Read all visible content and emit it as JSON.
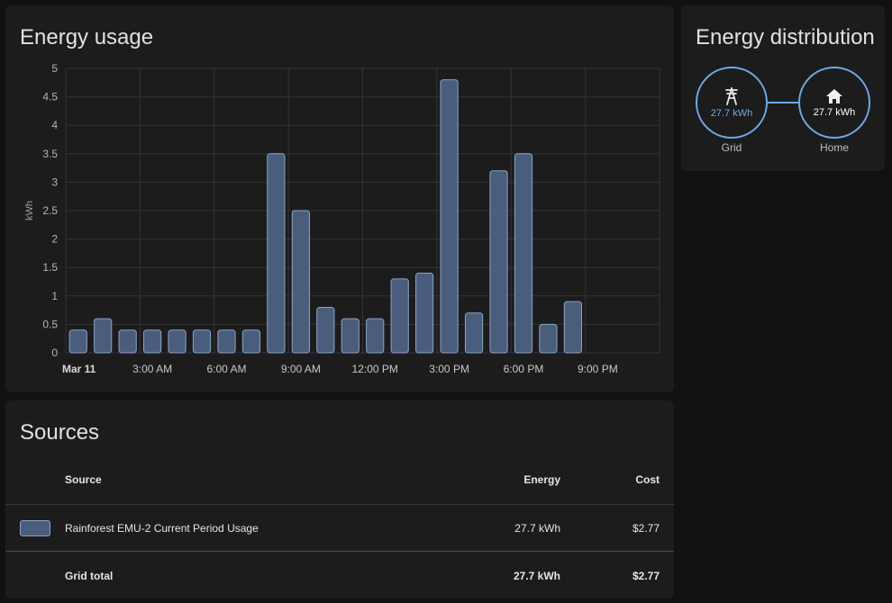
{
  "usage_card": {
    "title": "Energy usage"
  },
  "chart_data": {
    "type": "bar",
    "ylabel": "kWh",
    "ylim": [
      0,
      5
    ],
    "y_ticks": [
      "0",
      "0.5",
      "1",
      "1.5",
      "2",
      "2.5",
      "3",
      "3.5",
      "4",
      "4.5",
      "5"
    ],
    "x_tick_labels": [
      "Mar 11",
      "3:00 AM",
      "6:00 AM",
      "9:00 AM",
      "12:00 PM",
      "3:00 PM",
      "6:00 PM",
      "9:00 PM"
    ],
    "categories": [
      "12 AM",
      "1 AM",
      "2 AM",
      "3 AM",
      "4 AM",
      "5 AM",
      "6 AM",
      "7 AM",
      "8 AM",
      "9 AM",
      "10 AM",
      "11 AM",
      "12 PM",
      "1 PM",
      "2 PM",
      "3 PM",
      "4 PM",
      "5 PM",
      "6 PM",
      "7 PM",
      "8 PM",
      "9 PM",
      "10 PM",
      "11 PM"
    ],
    "values": [
      0.4,
      0.6,
      0.4,
      0.4,
      0.4,
      0.4,
      0.4,
      0.4,
      3.5,
      2.5,
      0.8,
      0.6,
      0.6,
      1.3,
      1.4,
      4.8,
      0.7,
      3.2,
      3.5,
      0.5,
      0.9,
      null,
      null,
      null
    ],
    "grid": true,
    "colors": {
      "bar_fill": "#4b5d7c",
      "bar_stroke": "#8aa3c7"
    }
  },
  "distribution": {
    "title": "Energy distribution",
    "grid": {
      "value": "27.7 kWh",
      "caption": "Grid",
      "icon": "transmission-tower-icon"
    },
    "home": {
      "value": "27.7 kWh",
      "caption": "Home",
      "icon": "home-icon"
    },
    "accent": "#6fa8e6"
  },
  "sources": {
    "title": "Sources",
    "headers": {
      "source": "Source",
      "energy": "Energy",
      "cost": "Cost"
    },
    "rows": [
      {
        "source": "Rainforest EMU-2 Current Period Usage",
        "energy": "27.7 kWh",
        "cost": "$2.77"
      }
    ],
    "total": {
      "label": "Grid total",
      "energy": "27.7 kWh",
      "cost": "$2.77"
    }
  }
}
